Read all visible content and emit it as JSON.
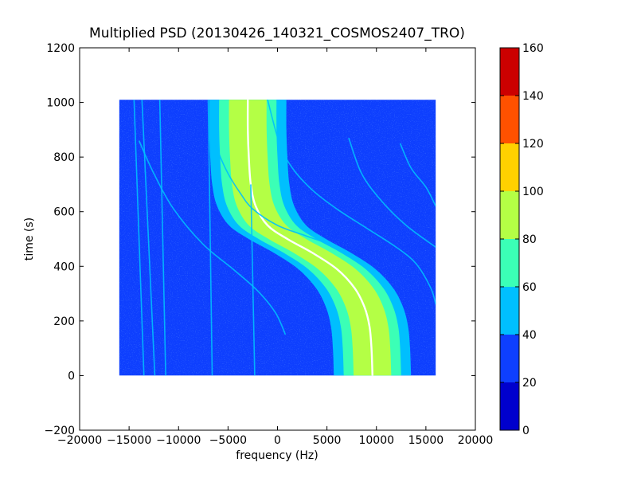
{
  "chart_data": {
    "type": "heatmap",
    "title": "Multiplied PSD (20130426_140321_COSMOS2407_TRO)",
    "xlabel": "frequency (Hz)",
    "ylabel": "time (s)",
    "xlim": [
      -20000,
      20000
    ],
    "ylim": [
      -200,
      1200
    ],
    "x_ticks": [
      -20000,
      -15000,
      -10000,
      -5000,
      0,
      5000,
      10000,
      15000,
      20000
    ],
    "x_tick_labels": [
      "−20000",
      "−15000",
      "−10000",
      "−5000",
      "0",
      "5000",
      "10000",
      "15000",
      "20000"
    ],
    "y_ticks": [
      -200,
      0,
      200,
      400,
      600,
      800,
      1000,
      1200
    ],
    "y_tick_labels": [
      "−200",
      "0",
      "200",
      "400",
      "600",
      "800",
      "1000",
      "1200"
    ],
    "data_extent": {
      "x": [
        -16000,
        16000
      ],
      "y": [
        0,
        1010
      ]
    },
    "background_value": 30,
    "colorbar": {
      "levels": [
        0,
        20,
        40,
        60,
        80,
        100,
        120,
        140,
        160
      ],
      "tick_labels": [
        "0",
        "20",
        "40",
        "60",
        "80",
        "100",
        "120",
        "140",
        "160"
      ],
      "colors": [
        "#0000cd",
        "#0e3ffe",
        "#00bffe",
        "#3bffb6",
        "#b4ff45",
        "#ffd100",
        "#ff5100",
        "#cc0000"
      ]
    },
    "main_track": {
      "description_free": true,
      "center": [
        [
          -3000,
          1010
        ],
        [
          -3000,
          900
        ],
        [
          -2900,
          800
        ],
        [
          -2700,
          700
        ],
        [
          -2200,
          620
        ],
        [
          -1000,
          550
        ],
        [
          1000,
          500
        ],
        [
          3500,
          450
        ],
        [
          6000,
          390
        ],
        [
          7800,
          320
        ],
        [
          8800,
          250
        ],
        [
          9300,
          180
        ],
        [
          9500,
          100
        ],
        [
          9600,
          0
        ]
      ],
      "bands": [
        {
          "value": 50,
          "halfwidth": 3900
        },
        {
          "value": 70,
          "halfwidth": 2900
        },
        {
          "value": 90,
          "halfwidth": 1900
        },
        {
          "value": 160,
          "halfwidth": 150
        }
      ]
    },
    "faint_lines": [
      {
        "value": 50,
        "points": [
          [
            -13500,
            0
          ],
          [
            -14500,
            1010
          ]
        ]
      },
      {
        "value": 50,
        "points": [
          [
            -12400,
            0
          ],
          [
            -13700,
            1010
          ]
        ]
      },
      {
        "value": 50,
        "points": [
          [
            -11300,
            0
          ],
          [
            -11900,
            1010
          ]
        ]
      },
      {
        "value": 50,
        "points": [
          [
            -6600,
            0
          ],
          [
            -7000,
            1010
          ]
        ]
      },
      {
        "value": 50,
        "points": [
          [
            -2300,
            0
          ],
          [
            -2700,
            700
          ]
        ]
      },
      {
        "value": 50,
        "points": [
          [
            -14000,
            860
          ],
          [
            -12500,
            740
          ],
          [
            -10500,
            610
          ],
          [
            -7500,
            480
          ],
          [
            -4500,
            390
          ],
          [
            -2000,
            310
          ],
          [
            -200,
            230
          ],
          [
            800,
            150
          ]
        ]
      },
      {
        "value": 50,
        "points": [
          [
            -6500,
            880
          ],
          [
            -6000,
            820
          ],
          [
            -5000,
            740
          ],
          [
            -3800,
            670
          ],
          [
            -2500,
            610
          ],
          [
            0,
            550
          ],
          [
            3000,
            510
          ],
          [
            6000,
            470
          ],
          [
            8500,
            420
          ],
          [
            10500,
            360
          ],
          [
            12000,
            280
          ],
          [
            12800,
            190
          ],
          [
            13000,
            130
          ]
        ]
      },
      {
        "value": 50,
        "points": [
          [
            -1000,
            1010
          ],
          [
            200,
            850
          ],
          [
            1500,
            760
          ],
          [
            3500,
            680
          ],
          [
            6000,
            610
          ],
          [
            9000,
            540
          ],
          [
            12000,
            470
          ],
          [
            14000,
            410
          ],
          [
            15500,
            320
          ],
          [
            16000,
            260
          ]
        ]
      },
      {
        "value": 50,
        "points": [
          [
            7200,
            870
          ],
          [
            8500,
            740
          ],
          [
            10500,
            640
          ],
          [
            13000,
            550
          ],
          [
            16000,
            470
          ]
        ]
      },
      {
        "value": 50,
        "points": [
          [
            12400,
            850
          ],
          [
            13500,
            760
          ],
          [
            15000,
            690
          ],
          [
            16000,
            620
          ]
        ]
      }
    ]
  }
}
